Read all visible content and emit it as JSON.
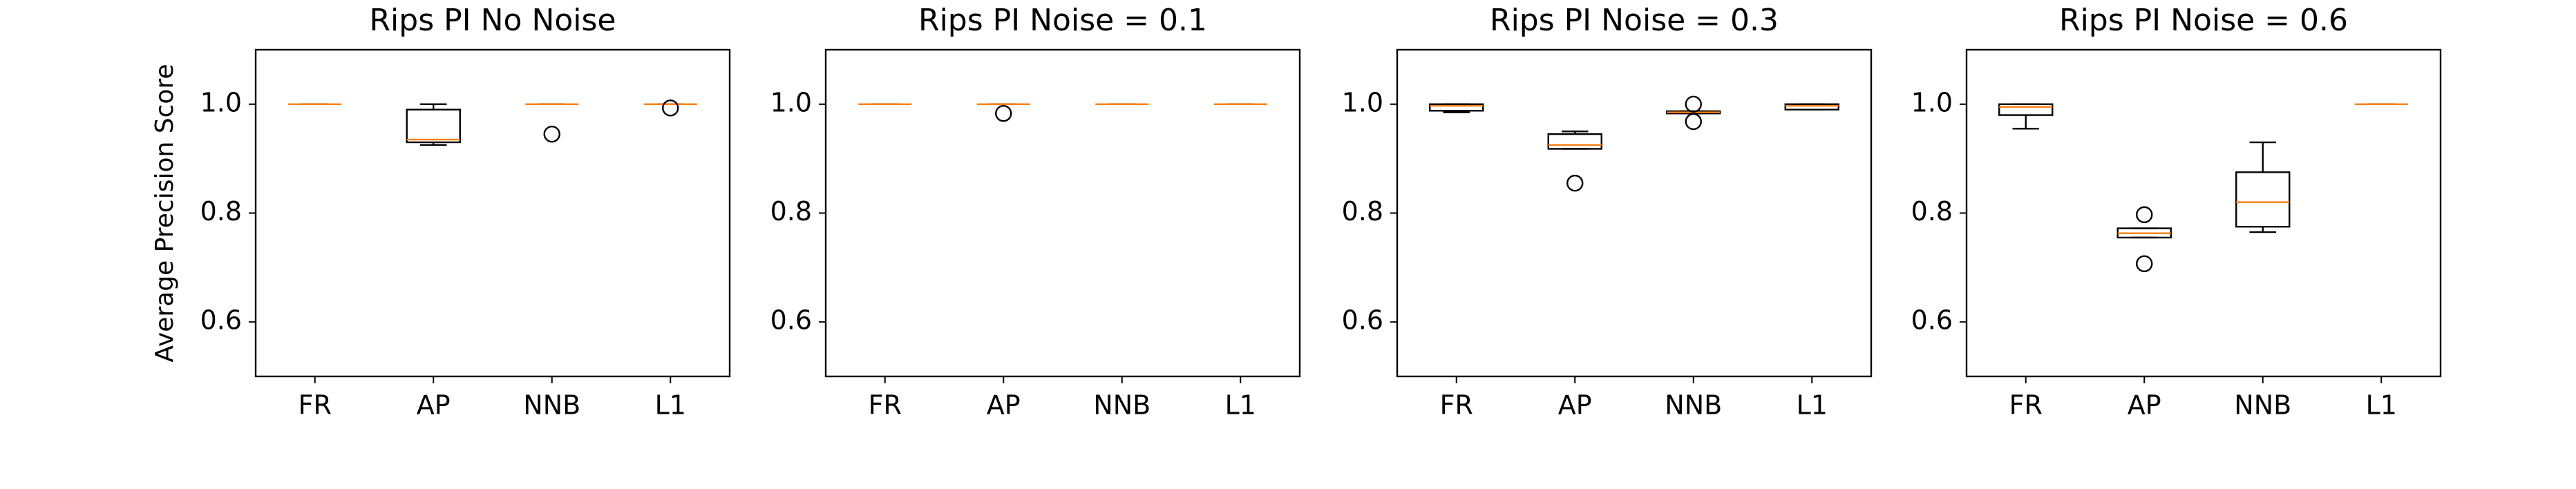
{
  "chart_data": [
    {
      "type": "box",
      "title": "Rips PI No Noise",
      "ylabel": "Average Precision Score",
      "categories": [
        "FR",
        "AP",
        "NNB",
        "L1"
      ],
      "boxes": [
        {
          "whislo": 1,
          "q1": 1,
          "median": 1,
          "q3": 1,
          "whishi": 1
        },
        {
          "whislo": 0.925,
          "q1": 0.93,
          "median": 0.935,
          "q3": 0.99,
          "whishi": 1
        },
        {
          "whislo": 1,
          "q1": 1,
          "median": 1,
          "q3": 1,
          "whishi": 1,
          "fliers": [
            0.945
          ]
        },
        {
          "whislo": 1,
          "q1": 1,
          "median": 1,
          "q3": 1,
          "whishi": 1,
          "fliers": [
            0.993
          ]
        }
      ],
      "ylim": [
        0.5,
        1.1
      ],
      "yticks": [
        0.6,
        0.8,
        {
          "value": 1,
          "label": "1.0"
        }
      ],
      "box_color": "#000000",
      "median_color": "#ff7f0e"
    },
    {
      "type": "box",
      "title": "Rips PI Noise = 0.1",
      "categories": [
        "FR",
        "AP",
        "NNB",
        "L1"
      ],
      "boxes": [
        {
          "whislo": 1,
          "q1": 1,
          "median": 1,
          "q3": 1,
          "whishi": 1
        },
        {
          "whislo": 1,
          "q1": 1,
          "median": 1,
          "q3": 1,
          "whishi": 1,
          "fliers": [
            0.983
          ]
        },
        {
          "whislo": 1,
          "q1": 1,
          "median": 1,
          "q3": 1,
          "whishi": 1
        },
        {
          "whislo": 1,
          "q1": 1,
          "median": 1,
          "q3": 1,
          "whishi": 1
        }
      ],
      "ylim": [
        0.5,
        1.1
      ],
      "yticks": [
        0.6,
        0.8,
        {
          "value": 1,
          "label": "1.0"
        }
      ],
      "box_color": "#000000",
      "median_color": "#ff7f0e"
    },
    {
      "type": "box",
      "title": "Rips PI Noise = 0.3",
      "categories": [
        "FR",
        "AP",
        "NNB",
        "L1"
      ],
      "boxes": [
        {
          "whislo": 0.985,
          "q1": 0.988,
          "median": 0.997,
          "q3": 1,
          "whishi": 1
        },
        {
          "whislo": 0.918,
          "q1": 0.918,
          "median": 0.925,
          "q3": 0.945,
          "whishi": 0.95,
          "fliers": [
            0.855
          ]
        },
        {
          "whislo": 0.983,
          "q1": 0.983,
          "median": 0.985,
          "q3": 0.987,
          "whishi": 0.987,
          "fliers": [
            1,
            0.968
          ]
        },
        {
          "whislo": 0.99,
          "q1": 0.99,
          "median": 0.997,
          "q3": 1,
          "whishi": 1
        }
      ],
      "ylim": [
        0.5,
        1.1
      ],
      "yticks": [
        0.6,
        0.8,
        {
          "value": 1,
          "label": "1.0"
        }
      ],
      "box_color": "#000000",
      "median_color": "#ff7f0e"
    },
    {
      "type": "box",
      "title": "Rips PI Noise = 0.6",
      "categories": [
        "FR",
        "AP",
        "NNB",
        "L1"
      ],
      "boxes": [
        {
          "whislo": 0.955,
          "q1": 0.98,
          "median": 0.995,
          "q3": 1,
          "whishi": 1
        },
        {
          "whislo": 0.755,
          "q1": 0.755,
          "median": 0.763,
          "q3": 0.772,
          "whishi": 0.772,
          "fliers": [
            0.797,
            0.707
          ]
        },
        {
          "whislo": 0.765,
          "q1": 0.775,
          "median": 0.82,
          "q3": 0.875,
          "whishi": 0.93
        },
        {
          "whislo": 1,
          "q1": 1,
          "median": 1,
          "q3": 1,
          "whishi": 1
        }
      ],
      "ylim": [
        0.5,
        1.1
      ],
      "yticks": [
        0.6,
        0.8,
        {
          "value": 1,
          "label": "1.0"
        }
      ],
      "box_color": "#000000",
      "median_color": "#ff7f0e"
    }
  ]
}
